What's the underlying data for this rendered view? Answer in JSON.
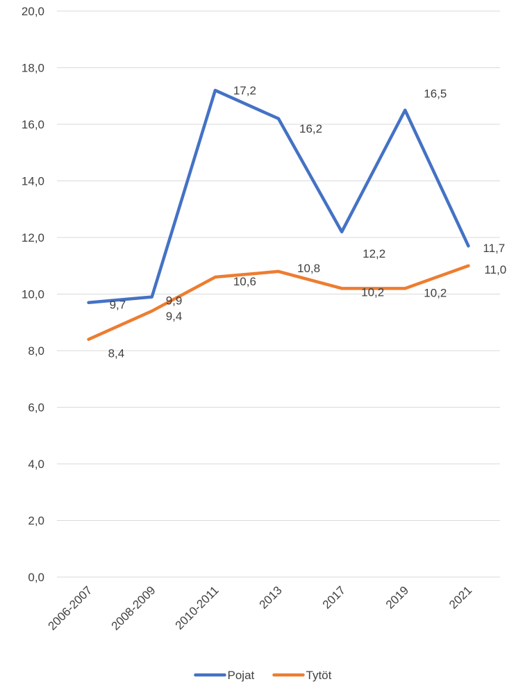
{
  "chart_data": {
    "type": "line",
    "categories": [
      "2006-2007",
      "2008-2009",
      "2010-2011",
      "2013",
      "2017",
      "2019",
      "2021"
    ],
    "series": [
      {
        "name": "Pojat",
        "values": [
          9.7,
          9.9,
          17.2,
          16.2,
          12.2,
          16.5,
          11.7
        ],
        "labels": [
          "9,7",
          "9,9",
          "17,2",
          "16,2",
          "12,2",
          "16,5",
          "11,7"
        ],
        "color": "#4472C4"
      },
      {
        "name": "Tytöt",
        "values": [
          8.4,
          9.4,
          10.6,
          10.8,
          10.2,
          10.2,
          11.0
        ],
        "labels": [
          "8,4",
          "9,4",
          "10,6",
          "10,8",
          "10,2",
          "10,2",
          "11,0"
        ],
        "color": "#ED7D31"
      }
    ],
    "ylim": [
      0,
      20
    ],
    "yticks": [
      0,
      2,
      4,
      6,
      8,
      10,
      12,
      14,
      16,
      18,
      20
    ],
    "ytick_labels": [
      "0,0",
      "2,0",
      "4,0",
      "6,0",
      "8,0",
      "10,0",
      "12,0",
      "14,0",
      "16,0",
      "18,0",
      "20,0"
    ],
    "grid": true,
    "legend_position": "bottom",
    "gridline_color": "#D9D9D9"
  }
}
